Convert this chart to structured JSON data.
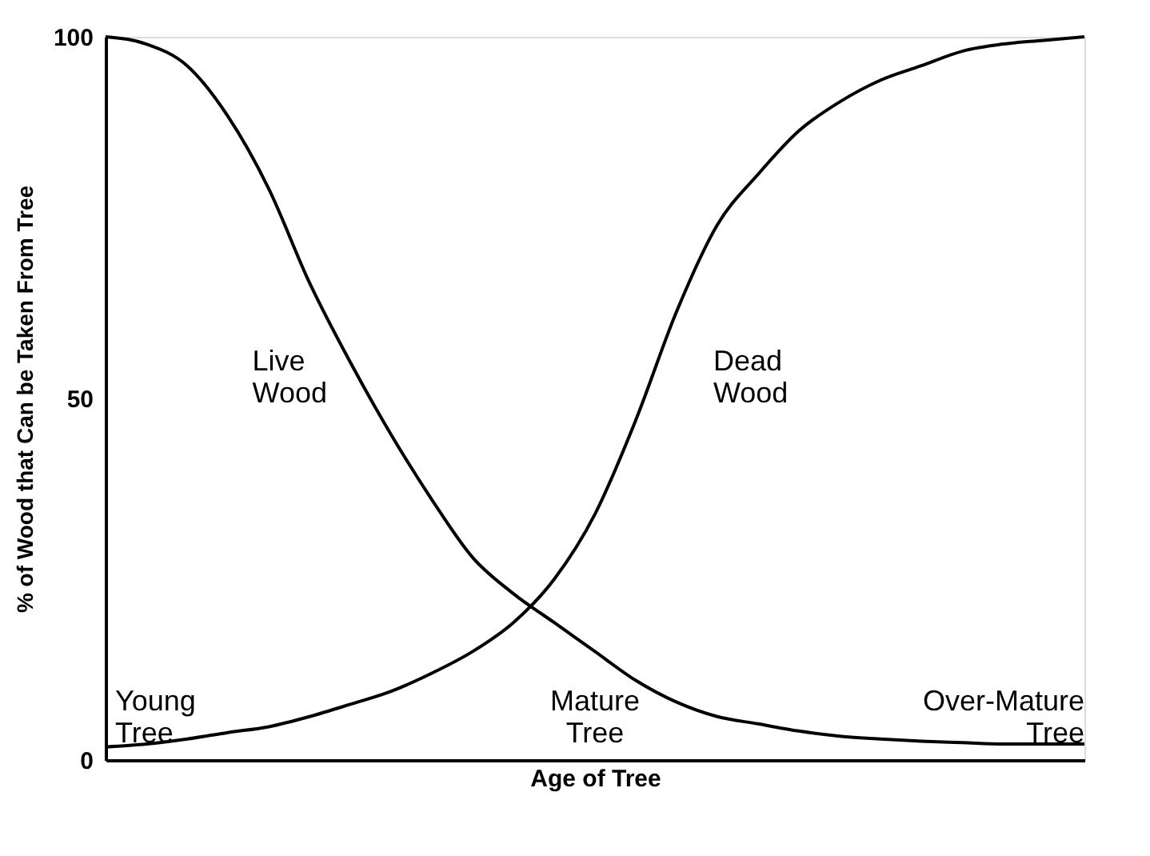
{
  "chart_data": {
    "type": "line",
    "xlabel": "Age of Tree",
    "ylabel": "% of Wood that Can be Taken From Tree",
    "categories": [
      null,
      null,
      null,
      null,
      null,
      null,
      null,
      null,
      null,
      null,
      null,
      null,
      null,
      null,
      null,
      null,
      null,
      null,
      null,
      null,
      null,
      null,
      null,
      null,
      null
    ],
    "series": [
      {
        "name": "Live Wood",
        "color": "#000000",
        "values": [
          100,
          99,
          96,
          89,
          79,
          66,
          55,
          45,
          36,
          28,
          23,
          19,
          15,
          11,
          8,
          6,
          5,
          4,
          3.3,
          2.9,
          2.6,
          2.4,
          2.2,
          2.2,
          2.2
        ]
      },
      {
        "name": "Dead Wood",
        "color": "#000000",
        "values": [
          1.8,
          2.2,
          2.9,
          3.8,
          4.6,
          6,
          7.7,
          9.5,
          12,
          15,
          19,
          25,
          34,
          47,
          62,
          74,
          81,
          87,
          91,
          94,
          96,
          98,
          99,
          99.5,
          100
        ]
      }
    ],
    "ylim": [
      0,
      100
    ],
    "yticks": [
      0,
      50,
      100
    ],
    "grid": false,
    "legend": false,
    "marker": "none",
    "line_style": "solid",
    "annotations": [
      "Young Tree",
      "Mature Tree",
      "Over-Mature Tree"
    ]
  }
}
